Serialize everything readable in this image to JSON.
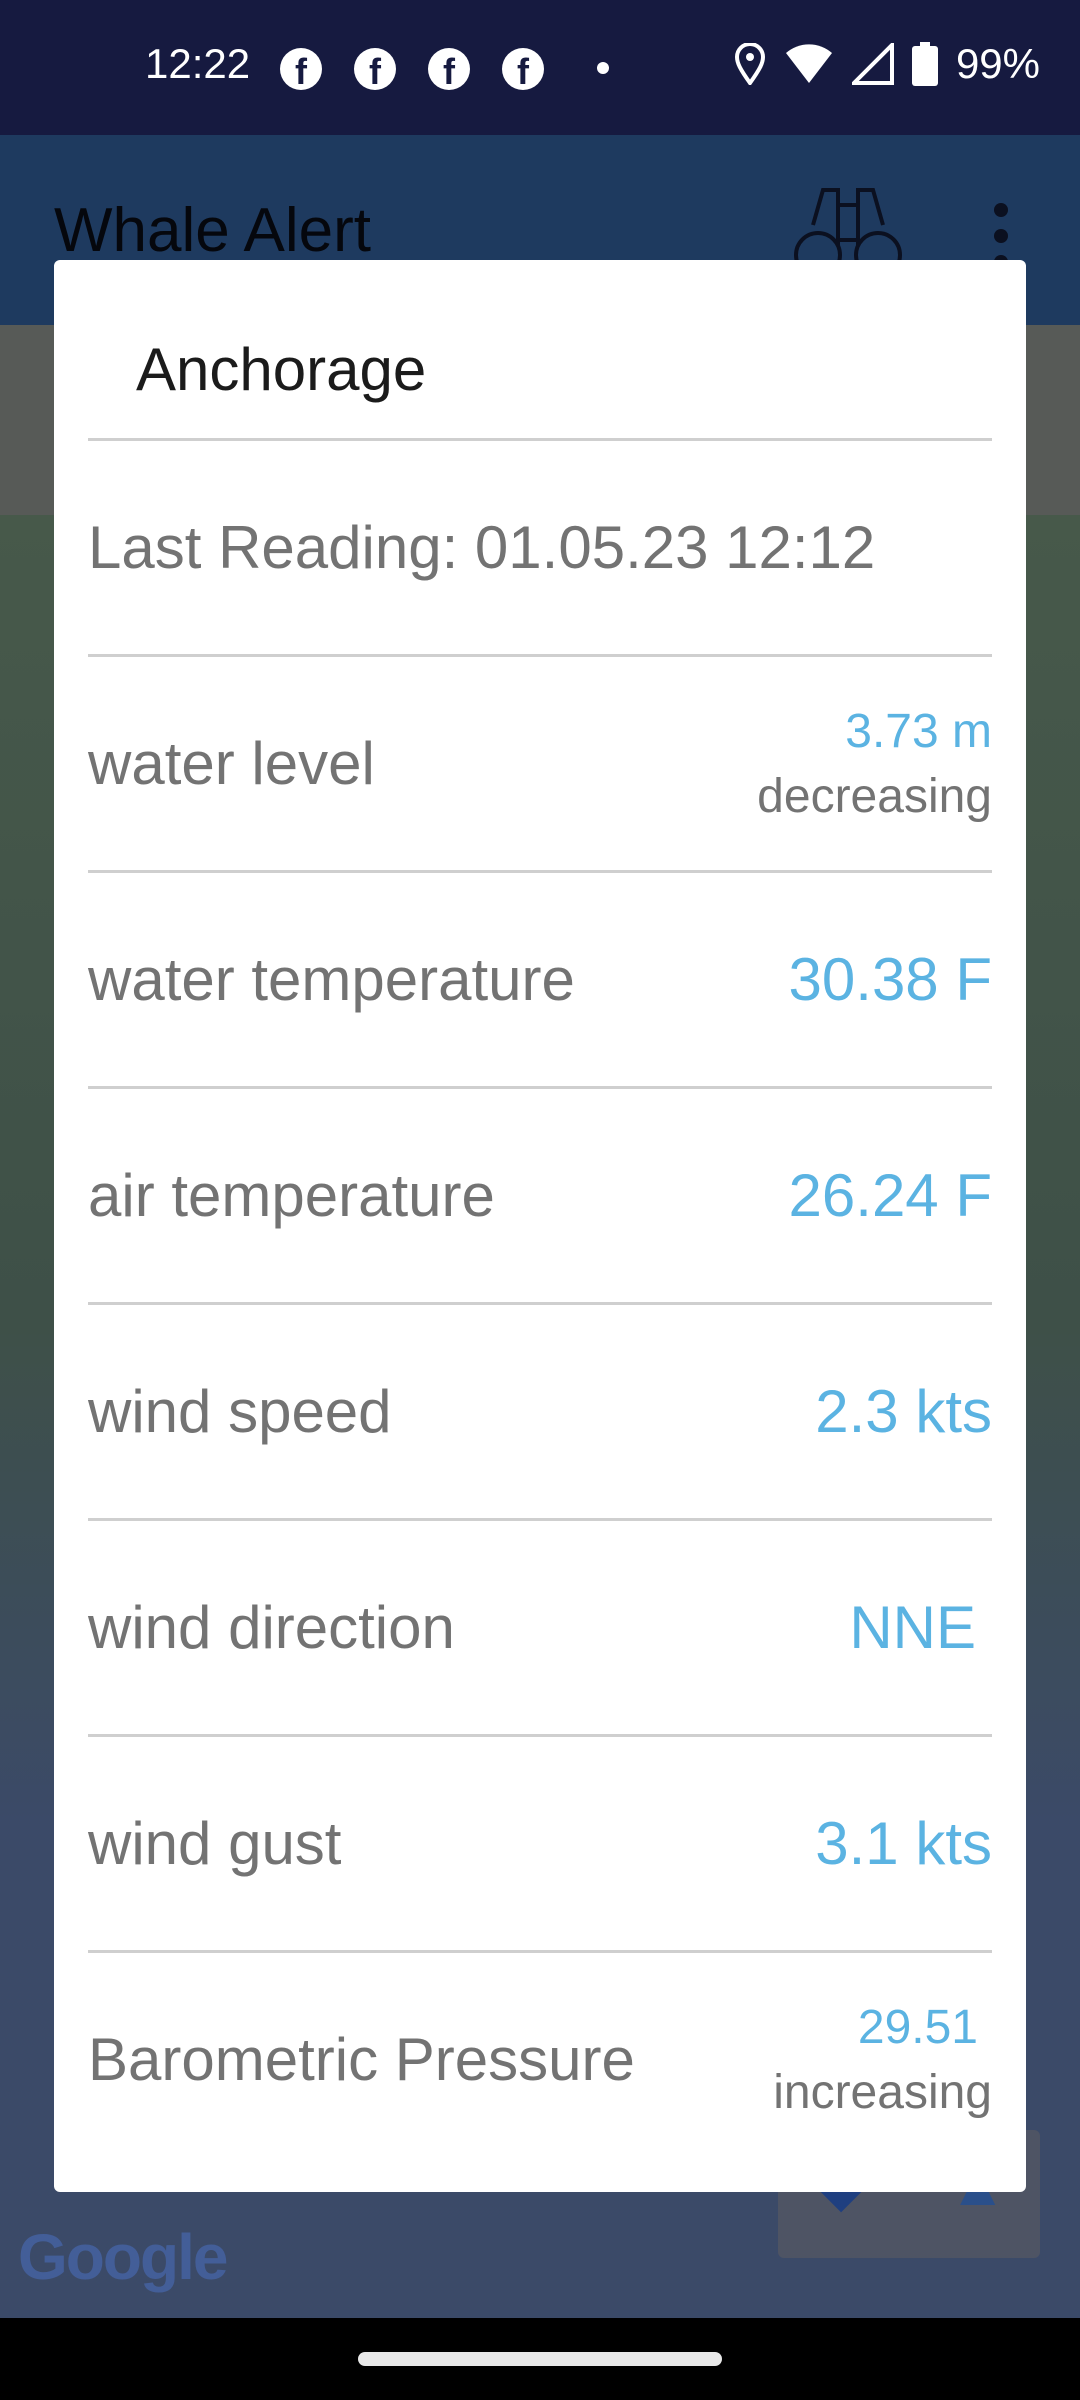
{
  "status_bar": {
    "time": "12:22",
    "battery": "99%",
    "notification_icons": [
      "facebook-icon",
      "facebook-icon",
      "facebook-icon",
      "facebook-icon"
    ]
  },
  "app_bar": {
    "title": "Whale Alert"
  },
  "dialog": {
    "title": "Anchorage",
    "last_reading": "Last Reading: 01.05.23 12:12",
    "rows": [
      {
        "label": "water level",
        "value": "3.73 m",
        "trend": "decreasing"
      },
      {
        "label": "water temperature",
        "value": "30.38 F"
      },
      {
        "label": "air temperature",
        "value": "26.24 F"
      },
      {
        "label": "wind speed",
        "value": "2.3 kts"
      },
      {
        "label": "wind direction",
        "value": "NNE"
      },
      {
        "label": "wind gust",
        "value": "3.1 kts"
      },
      {
        "label": "Barometric Pressure",
        "value": "29.51",
        "trend": "increasing"
      }
    ]
  },
  "map": {
    "logo": "Google"
  },
  "colors": {
    "accent": "#5bb3e2",
    "label": "#737373",
    "app_bar": "#1e3a5f",
    "status_bar": "#161a40"
  }
}
